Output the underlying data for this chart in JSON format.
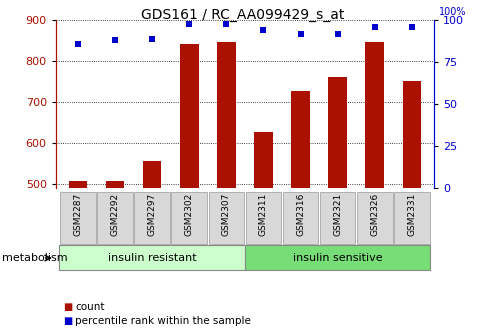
{
  "title": "GDS161 / RC_AA099429_s_at",
  "samples": [
    "GSM2287",
    "GSM2292",
    "GSM2297",
    "GSM2302",
    "GSM2307",
    "GSM2311",
    "GSM2316",
    "GSM2321",
    "GSM2326",
    "GSM2331"
  ],
  "counts": [
    508,
    508,
    557,
    843,
    847,
    628,
    727,
    762,
    847,
    752
  ],
  "percentile_ranks": [
    86,
    88,
    89,
    98,
    98,
    94,
    92,
    92,
    96,
    96
  ],
  "group_colors": [
    "#ccffcc",
    "#77dd77"
  ],
  "bar_color": "#aa1100",
  "dot_color": "#0000cc",
  "ylim_left": [
    490,
    900
  ],
  "ylim_right": [
    0,
    100
  ],
  "yticks_left": [
    500,
    600,
    700,
    800,
    900
  ],
  "yticks_right": [
    0,
    25,
    50,
    75,
    100
  ],
  "bar_width": 0.5,
  "legend_items": [
    "count",
    "percentile rank within the sample"
  ]
}
